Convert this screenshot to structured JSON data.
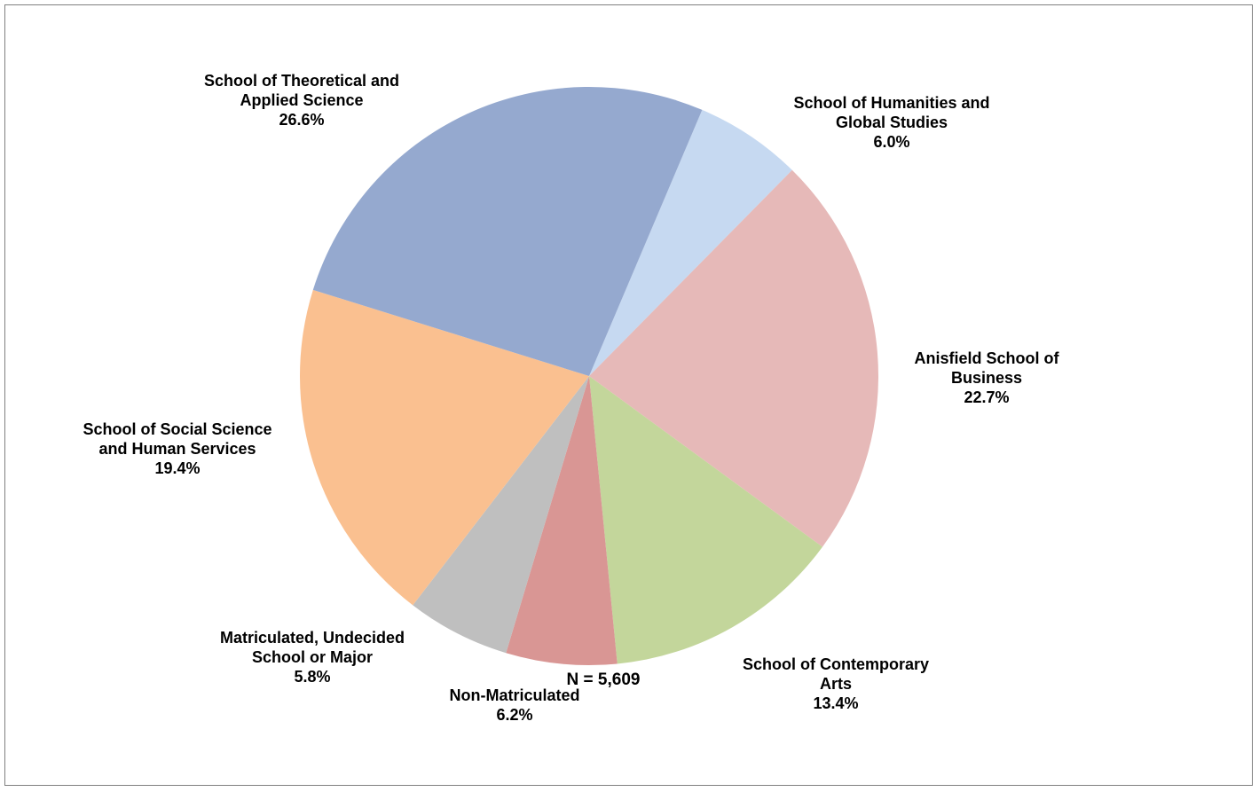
{
  "chart_data": {
    "type": "pie",
    "title": "",
    "slices": [
      {
        "name_lines": [
          "School of Humanities and",
          "Global Studies"
        ],
        "pct_label": "6.0%",
        "value": 6.0,
        "color": "#C6D9F1"
      },
      {
        "name_lines": [
          "Anisfield School of",
          "Business"
        ],
        "pct_label": "22.7%",
        "value": 22.7,
        "color": "#E6B9B8"
      },
      {
        "name_lines": [
          "School of Contemporary",
          "Arts"
        ],
        "pct_label": "13.4%",
        "value": 13.4,
        "color": "#C3D69B"
      },
      {
        "name_lines": [
          "Non-Matriculated"
        ],
        "pct_label": "6.2%",
        "value": 6.2,
        "color": "#D99694"
      },
      {
        "name_lines": [
          "Matriculated, Undecided",
          "School or Major"
        ],
        "pct_label": "5.8%",
        "value": 5.8,
        "color": "#BFBFBF"
      },
      {
        "name_lines": [
          "School of Social Science",
          "and Human Services"
        ],
        "pct_label": "19.4%",
        "value": 19.4,
        "color": "#FAC090"
      },
      {
        "name_lines": [
          "School of Theoretical and",
          "Applied Science"
        ],
        "pct_label": "26.6%",
        "value": 26.6,
        "color": "#95A9CF"
      }
    ],
    "start_angle_deg": 23,
    "direction": "clockwise"
  },
  "footer": {
    "n_label": "N = 5,609"
  }
}
